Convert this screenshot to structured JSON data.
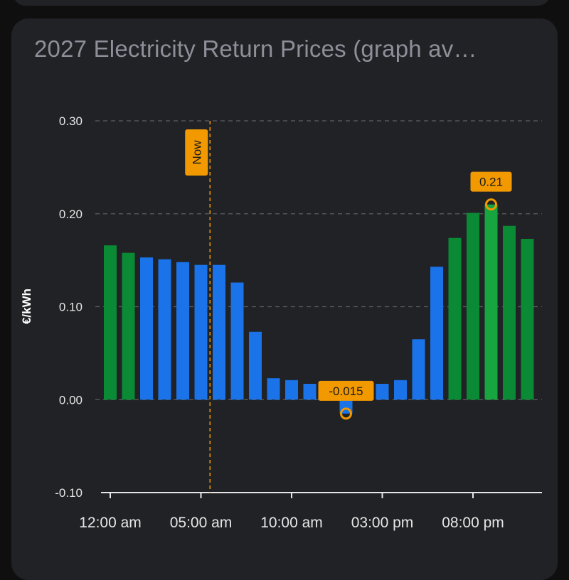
{
  "card": {
    "title": "2027 Electricity Return Prices (graph av…"
  },
  "chart_data": {
    "type": "bar",
    "ylabel": "€/kWh",
    "ylim": [
      -0.1,
      0.3
    ],
    "yticks": [
      0.3,
      0.2,
      0.1,
      0.0,
      -0.1
    ],
    "ytick_labels": [
      "0.30",
      "0.20",
      "0.10",
      "0.00",
      "-0.10"
    ],
    "xtick_labels": [
      "12:00 am",
      "05:00 am",
      "10:00 am",
      "03:00 pm",
      "08:00 pm"
    ],
    "xtick_hours": [
      0,
      5,
      10,
      15,
      20
    ],
    "grid": true,
    "hours": [
      0,
      1,
      2,
      3,
      4,
      5,
      6,
      7,
      8,
      9,
      10,
      11,
      12,
      13,
      14,
      15,
      16,
      17,
      18,
      19,
      20,
      21,
      22,
      23
    ],
    "values": [
      0.166,
      0.158,
      0.153,
      0.151,
      0.148,
      0.145,
      0.145,
      0.126,
      0.073,
      0.023,
      0.021,
      0.017,
      0.01,
      -0.015,
      0.007,
      0.017,
      0.021,
      0.065,
      0.143,
      0.174,
      0.201,
      0.21,
      0.187,
      0.173
    ],
    "bar_kind": [
      "high",
      "high",
      "normal",
      "normal",
      "normal",
      "normal",
      "normal",
      "normal",
      "normal",
      "normal",
      "normal",
      "normal",
      "normal",
      "normal",
      "normal",
      "normal",
      "normal",
      "normal",
      "normal",
      "high",
      "high",
      "peak",
      "high",
      "high"
    ],
    "colors": {
      "high": "#0a8a34",
      "peak": "#16a53f",
      "normal": "#1a73e8",
      "accent": "#f29900"
    },
    "now_marker": {
      "label": "Now",
      "hour": 5.5
    },
    "annotations": [
      {
        "label": "0.21",
        "hour": 21,
        "value": 0.21,
        "position": "above"
      },
      {
        "label": "-0.015",
        "hour": 13,
        "value": -0.015,
        "position": "above"
      }
    ]
  }
}
